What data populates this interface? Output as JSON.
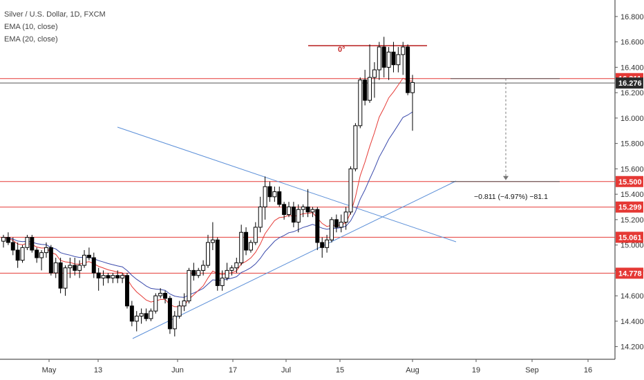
{
  "legend": {
    "title": "Silver / U.S. Dollar, 1D, FXCM",
    "ema1": "EMA (10, close)",
    "ema2": "EMA (20, close)"
  },
  "chart_data": {
    "type": "candlestick",
    "symbol": "Silver / U.S. Dollar",
    "interval": "1D",
    "source": "FXCM",
    "y_range": [
      14.1,
      16.93
    ],
    "y_ticks": [
      14.2,
      14.4,
      14.6,
      14.8,
      15.0,
      15.2,
      15.4,
      15.6,
      15.8,
      16.0,
      16.2,
      16.4,
      16.6,
      16.8
    ],
    "x_labels": [
      "May",
      "13",
      "Jun",
      "17",
      "Jul",
      "15",
      "Aug",
      "19",
      "Sep",
      "16"
    ],
    "last_price": "16.276",
    "price_labels": [
      {
        "value": 16.311,
        "text": "16.311",
        "color": "#e53935"
      },
      {
        "value": 15.5,
        "text": "15.500",
        "color": "#e53935"
      },
      {
        "value": 15.299,
        "text": "15.299",
        "color": "#e53935"
      },
      {
        "value": 15.061,
        "text": "15.061",
        "color": "#e53935"
      },
      {
        "value": 14.778,
        "text": "14.778",
        "color": "#e53935"
      }
    ],
    "horizontal_levels": [
      16.311,
      15.5,
      15.299,
      15.061,
      14.778
    ],
    "top_level": {
      "value": 16.57,
      "label": "0°"
    },
    "measure_label": "−0.811 (−4.97%) −81.1",
    "candles": [
      [
        15.03,
        15.08,
        14.98,
        15.06
      ],
      [
        15.06,
        15.1,
        15.0,
        15.02
      ],
      [
        15.02,
        15.06,
        14.92,
        14.96
      ],
      [
        14.96,
        15.02,
        14.82,
        14.88
      ],
      [
        14.88,
        15.0,
        14.86,
        14.98
      ],
      [
        14.98,
        15.08,
        14.96,
        15.06
      ],
      [
        15.06,
        15.08,
        14.94,
        14.96
      ],
      [
        14.96,
        14.98,
        14.86,
        14.9
      ],
      [
        14.9,
        14.96,
        14.8,
        14.94
      ],
      [
        14.94,
        15.02,
        14.9,
        14.98
      ],
      [
        14.98,
        15.0,
        14.76,
        14.78
      ],
      [
        14.78,
        14.9,
        14.74,
        14.86
      ],
      [
        14.86,
        14.9,
        14.62,
        14.66
      ],
      [
        14.66,
        14.84,
        14.6,
        14.82
      ],
      [
        14.82,
        14.9,
        14.74,
        14.84
      ],
      [
        14.84,
        14.9,
        14.76,
        14.8
      ],
      [
        14.8,
        14.88,
        14.74,
        14.84
      ],
      [
        14.84,
        14.96,
        14.82,
        14.92
      ],
      [
        14.92,
        14.98,
        14.88,
        14.9
      ],
      [
        14.9,
        14.94,
        14.74,
        14.78
      ],
      [
        14.78,
        14.82,
        14.64,
        14.74
      ],
      [
        14.74,
        14.8,
        14.68,
        14.76
      ],
      [
        14.76,
        14.78,
        14.7,
        14.74
      ],
      [
        14.74,
        14.78,
        14.7,
        14.76
      ],
      [
        14.76,
        14.8,
        14.7,
        14.74
      ],
      [
        14.74,
        14.78,
        14.7,
        14.76
      ],
      [
        14.76,
        14.78,
        14.5,
        14.52
      ],
      [
        14.52,
        14.56,
        14.36,
        14.4
      ],
      [
        14.4,
        14.48,
        14.32,
        14.44
      ],
      [
        14.44,
        14.5,
        14.38,
        14.46
      ],
      [
        14.46,
        14.5,
        14.4,
        14.42
      ],
      [
        14.42,
        14.5,
        14.4,
        14.48
      ],
      [
        14.48,
        14.62,
        14.46,
        14.6
      ],
      [
        14.6,
        14.66,
        14.58,
        14.62
      ],
      [
        14.62,
        14.64,
        14.54,
        14.58
      ],
      [
        14.58,
        14.6,
        14.3,
        14.34
      ],
      [
        14.34,
        14.48,
        14.28,
        14.44
      ],
      [
        14.44,
        14.56,
        14.42,
        14.52
      ],
      [
        14.52,
        14.62,
        14.48,
        14.56
      ],
      [
        14.56,
        14.82,
        14.54,
        14.8
      ],
      [
        14.8,
        14.86,
        14.72,
        14.76
      ],
      [
        14.76,
        14.82,
        14.74,
        14.8
      ],
      [
        14.8,
        14.88,
        14.76,
        14.84
      ],
      [
        14.84,
        15.08,
        14.82,
        15.02
      ],
      [
        15.02,
        15.18,
        14.96,
        15.04
      ],
      [
        15.04,
        15.06,
        14.64,
        14.68
      ],
      [
        14.68,
        14.8,
        14.64,
        14.74
      ],
      [
        14.74,
        14.86,
        14.72,
        14.8
      ],
      [
        14.8,
        14.84,
        14.76,
        14.82
      ],
      [
        14.82,
        14.9,
        14.78,
        14.86
      ],
      [
        14.86,
        15.16,
        14.84,
        15.1
      ],
      [
        15.1,
        15.14,
        14.92,
        14.96
      ],
      [
        14.96,
        15.04,
        14.94,
        15.02
      ],
      [
        15.02,
        15.18,
        15.0,
        15.14
      ],
      [
        15.14,
        15.38,
        15.1,
        15.3
      ],
      [
        15.3,
        15.54,
        15.2,
        15.46
      ],
      [
        15.46,
        15.5,
        15.34,
        15.38
      ],
      [
        15.38,
        15.46,
        15.34,
        15.42
      ],
      [
        15.42,
        15.46,
        15.3,
        15.32
      ],
      [
        15.32,
        15.34,
        15.2,
        15.24
      ],
      [
        15.24,
        15.34,
        15.22,
        15.3
      ],
      [
        15.3,
        15.34,
        15.14,
        15.18
      ],
      [
        15.18,
        15.32,
        15.1,
        15.28
      ],
      [
        15.28,
        15.32,
        15.22,
        15.3
      ],
      [
        15.3,
        15.44,
        15.22,
        15.26
      ],
      [
        15.26,
        15.3,
        15.22,
        15.28
      ],
      [
        15.28,
        15.3,
        14.96,
        15.02
      ],
      [
        15.02,
        15.06,
        14.9,
        14.98
      ],
      [
        14.98,
        15.08,
        14.94,
        15.04
      ],
      [
        15.04,
        15.22,
        15.02,
        15.2
      ],
      [
        15.2,
        15.24,
        15.1,
        15.14
      ],
      [
        15.14,
        15.24,
        15.1,
        15.18
      ],
      [
        15.18,
        15.3,
        15.12,
        15.26
      ],
      [
        15.26,
        15.62,
        15.24,
        15.6
      ],
      [
        15.6,
        15.96,
        15.58,
        15.94
      ],
      [
        15.94,
        16.32,
        15.92,
        16.3
      ],
      [
        16.3,
        16.38,
        16.1,
        16.14
      ],
      [
        16.14,
        16.58,
        16.12,
        16.32
      ],
      [
        16.32,
        16.44,
        16.16,
        16.38
      ],
      [
        16.38,
        16.6,
        16.3,
        16.56
      ],
      [
        16.56,
        16.64,
        16.32,
        16.4
      ],
      [
        16.4,
        16.56,
        16.3,
        16.52
      ],
      [
        16.52,
        16.6,
        16.36,
        16.42
      ],
      [
        16.42,
        16.56,
        16.36,
        16.5
      ],
      [
        16.5,
        16.6,
        16.34,
        16.56
      ],
      [
        16.56,
        16.58,
        16.18,
        16.2
      ],
      [
        16.2,
        16.34,
        15.9,
        16.28
      ]
    ]
  }
}
